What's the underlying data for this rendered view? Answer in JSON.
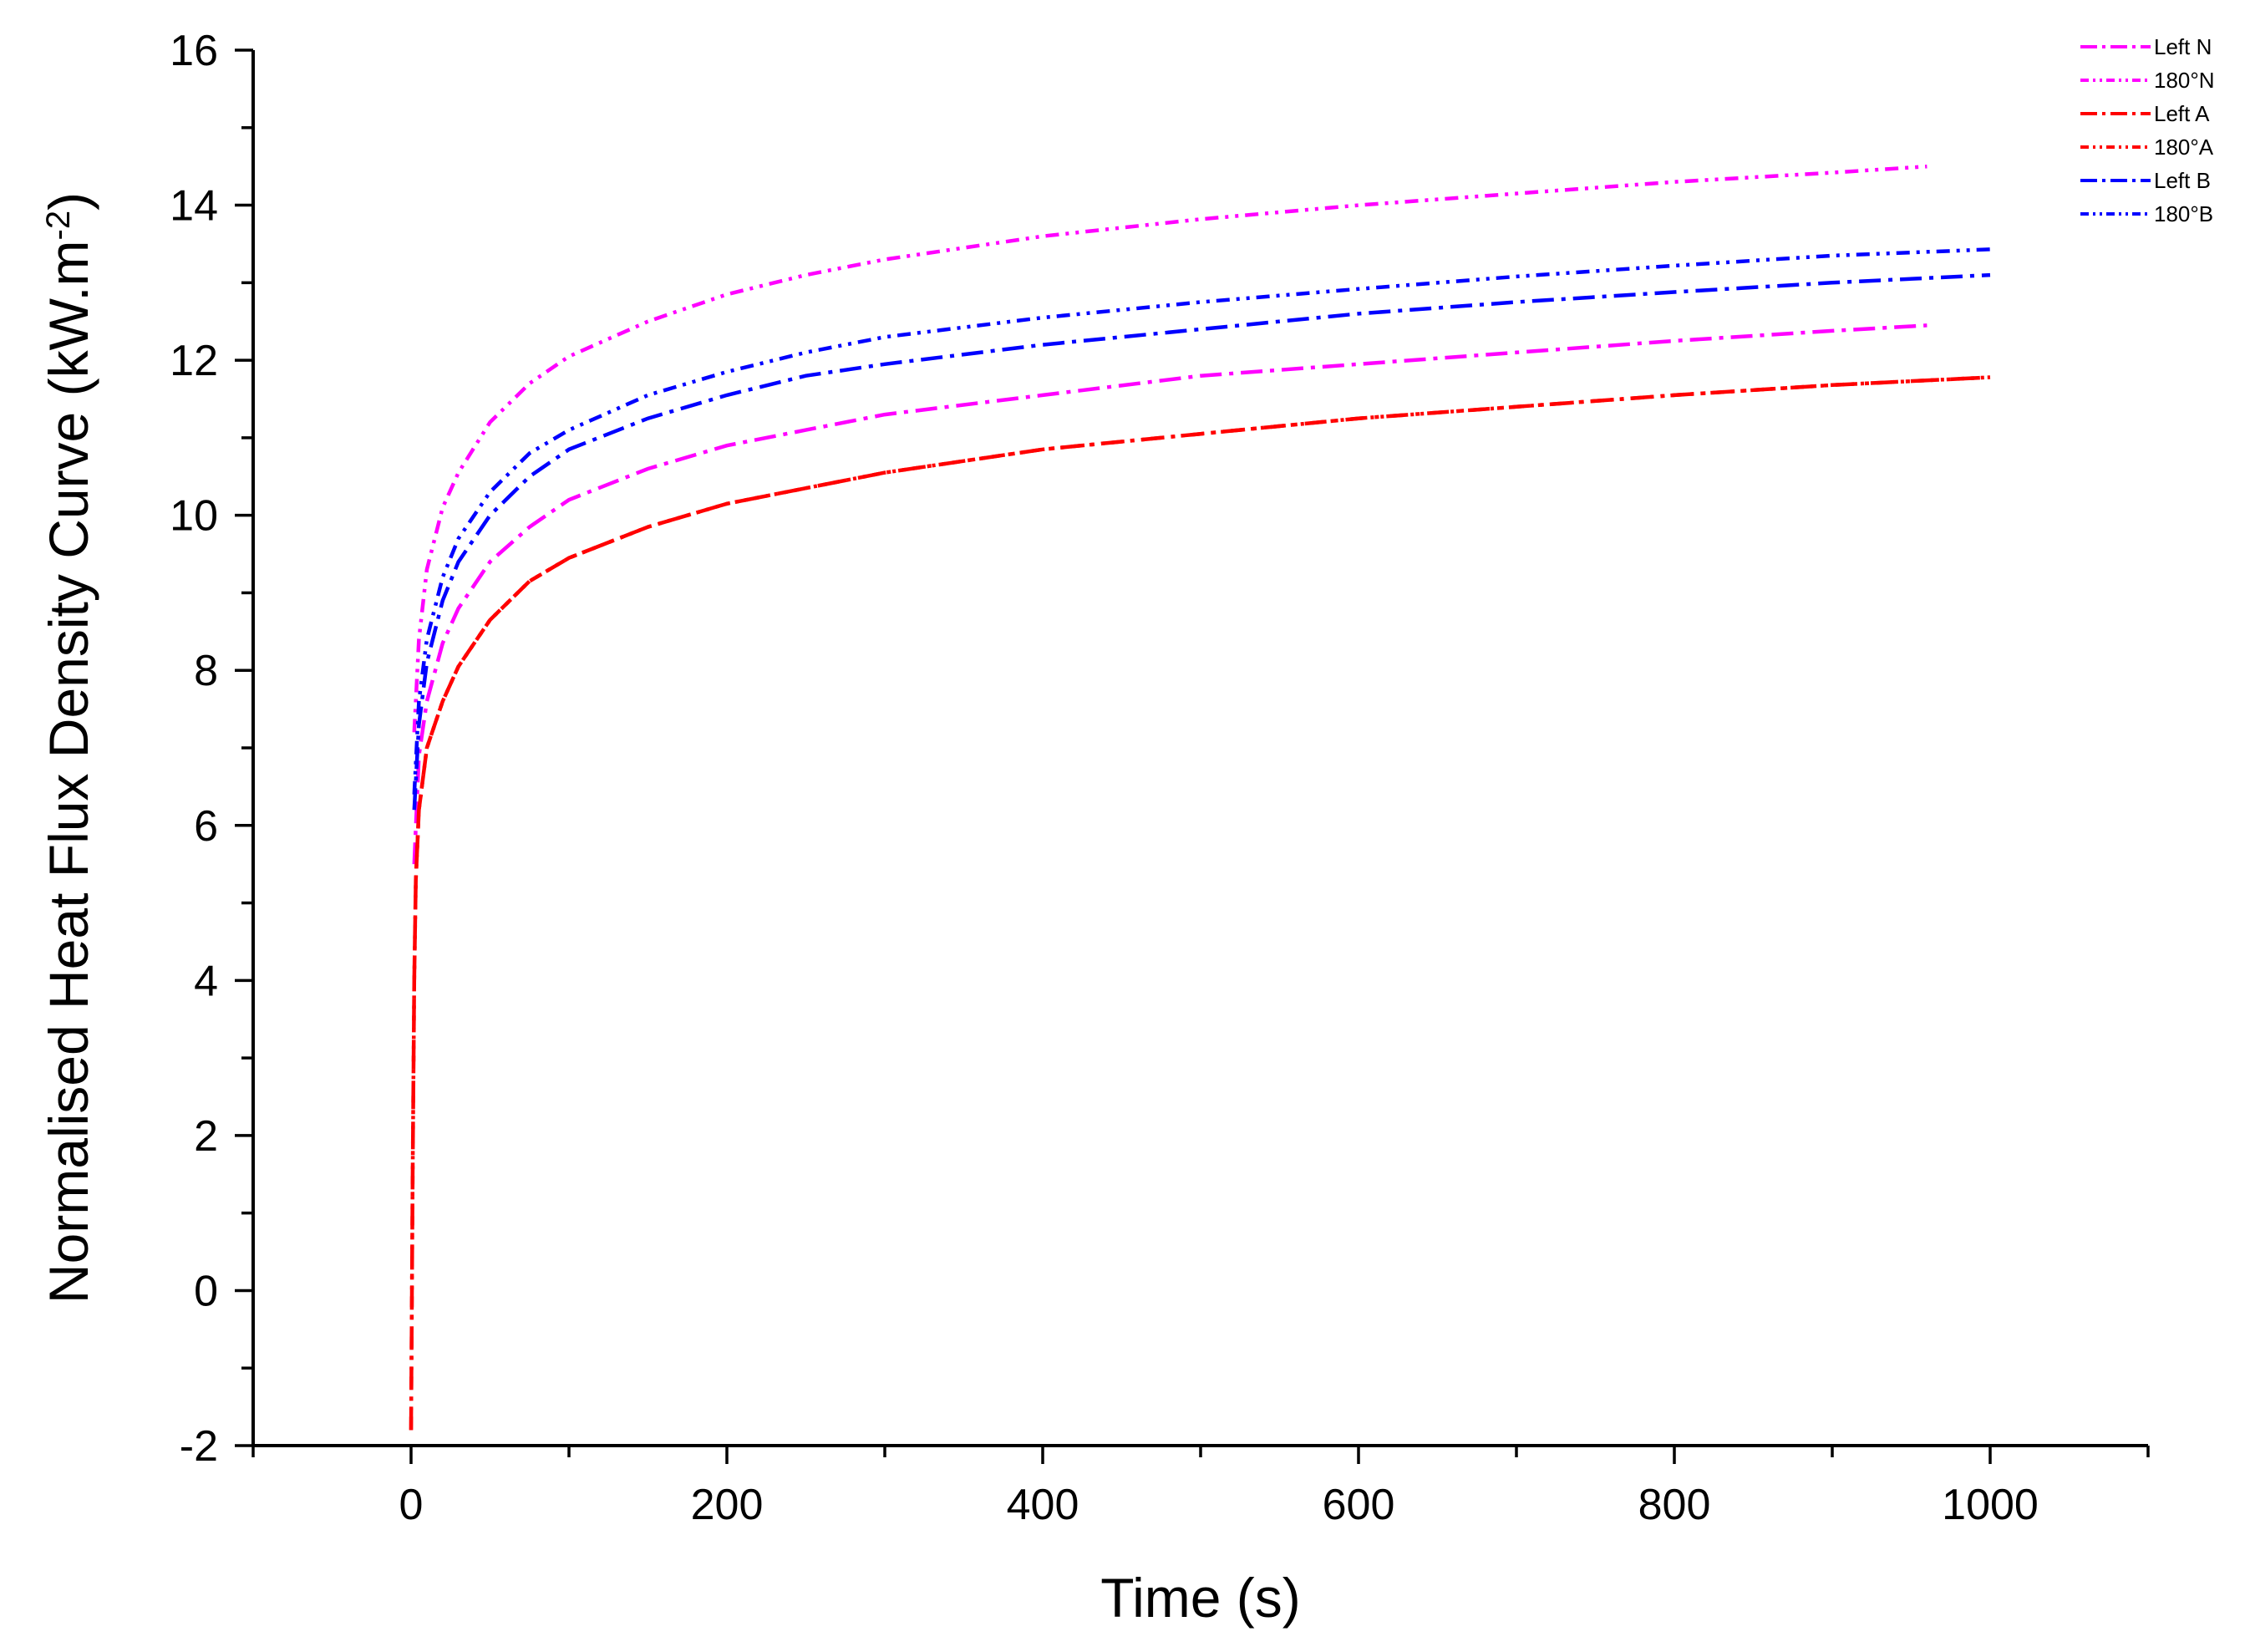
{
  "chart_data": {
    "type": "line",
    "xlabel": "Time (s)",
    "ylabel": "Normalised Heat Flux Density Curve (kW.m",
    "ylabel_sup": "-2",
    "ylabel_end": ")",
    "xlim": [
      -100,
      1100
    ],
    "ylim": [
      -2,
      16
    ],
    "x_ticks": [
      0,
      200,
      400,
      600,
      800,
      1000
    ],
    "x_tick_labels": [
      "0",
      "200",
      "400",
      "600",
      "800",
      "1000"
    ],
    "y_ticks": [
      -2,
      0,
      2,
      4,
      6,
      8,
      10,
      12,
      14,
      16
    ],
    "y_tick_labels": [
      "-2",
      "0",
      "2",
      "4",
      "6",
      "8",
      "10",
      "12",
      "14",
      "16"
    ],
    "legend_position": "top-right",
    "grid": false,
    "series": [
      {
        "name": "Left N",
        "color": "#ff00ff",
        "dash": "dash-dot",
        "x": [
          2,
          5,
          10,
          20,
          30,
          50,
          75,
          100,
          150,
          200,
          250,
          300,
          400,
          500,
          600,
          700,
          800,
          900,
          960
        ],
        "y": [
          5.5,
          6.9,
          7.6,
          8.35,
          8.8,
          9.4,
          9.85,
          10.2,
          10.6,
          10.9,
          11.1,
          11.3,
          11.55,
          11.8,
          11.95,
          12.1,
          12.25,
          12.38,
          12.45
        ]
      },
      {
        "name": "180°N",
        "color": "#ff00ff",
        "dash": "dash-dot-dot",
        "x": [
          2,
          5,
          10,
          20,
          30,
          50,
          75,
          100,
          150,
          200,
          250,
          300,
          400,
          500,
          600,
          700,
          800,
          900,
          960
        ],
        "y": [
          7.2,
          8.4,
          9.3,
          10.1,
          10.55,
          11.2,
          11.7,
          12.05,
          12.5,
          12.85,
          13.1,
          13.3,
          13.6,
          13.82,
          14.0,
          14.15,
          14.3,
          14.42,
          14.5
        ]
      },
      {
        "name": "Left A",
        "color": "#ff0000",
        "dash": "dash-dot",
        "x": [
          0,
          1,
          2,
          3,
          5,
          10,
          20,
          30,
          50,
          75,
          100,
          150,
          200,
          250,
          300,
          400,
          500,
          600,
          700,
          800,
          900,
          1000
        ],
        "y": [
          -1.8,
          1.5,
          4.0,
          5.3,
          6.2,
          7.0,
          7.6,
          8.05,
          8.65,
          9.15,
          9.45,
          9.85,
          10.15,
          10.35,
          10.55,
          10.85,
          11.05,
          11.25,
          11.4,
          11.55,
          11.68,
          11.78
        ]
      },
      {
        "name": "180°A",
        "color": "#ff0000",
        "dash": "dash-dot-dot",
        "x": [
          0,
          1,
          2,
          3,
          5,
          10,
          20,
          30,
          50,
          75,
          100,
          150,
          200,
          250,
          300,
          400,
          500,
          600,
          700,
          800,
          900,
          1000
        ],
        "y": [
          -1.8,
          1.5,
          4.0,
          5.3,
          6.2,
          7.0,
          7.6,
          8.05,
          8.65,
          9.15,
          9.45,
          9.85,
          10.15,
          10.35,
          10.55,
          10.85,
          11.05,
          11.25,
          11.4,
          11.55,
          11.68,
          11.78
        ]
      },
      {
        "name": "Left B",
        "color": "#0000ff",
        "dash": "dash-dot",
        "x": [
          2,
          5,
          10,
          20,
          30,
          50,
          75,
          100,
          150,
          200,
          250,
          300,
          400,
          500,
          600,
          700,
          800,
          900,
          1000
        ],
        "y": [
          6.2,
          7.3,
          8.1,
          8.9,
          9.4,
          10.0,
          10.5,
          10.85,
          11.25,
          11.55,
          11.8,
          11.95,
          12.2,
          12.4,
          12.6,
          12.75,
          12.88,
          13.0,
          13.1
        ]
      },
      {
        "name": "180°B",
        "color": "#0000ff",
        "dash": "dash-dot-dot",
        "x": [
          2,
          5,
          10,
          20,
          30,
          50,
          75,
          100,
          150,
          200,
          250,
          300,
          400,
          500,
          600,
          700,
          800,
          900,
          1000
        ],
        "y": [
          6.4,
          7.6,
          8.4,
          9.2,
          9.7,
          10.3,
          10.8,
          11.1,
          11.55,
          11.85,
          12.1,
          12.3,
          12.55,
          12.75,
          12.92,
          13.08,
          13.22,
          13.35,
          13.43
        ]
      }
    ]
  }
}
